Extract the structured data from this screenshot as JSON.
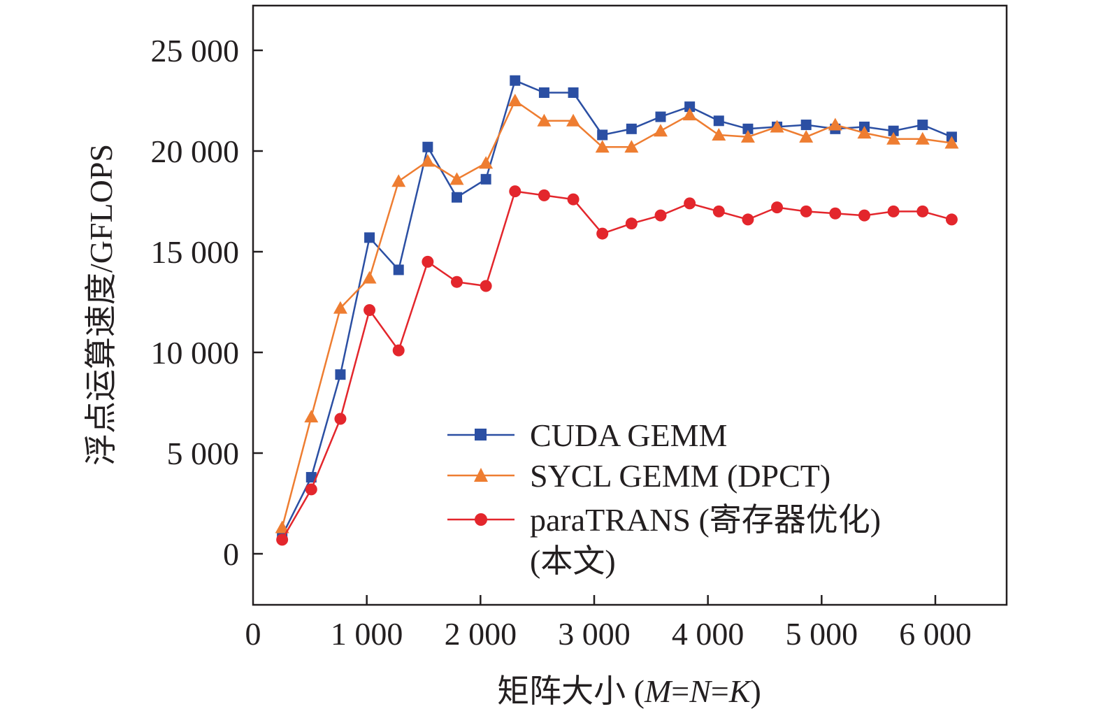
{
  "chart_data": {
    "type": "line",
    "title": "",
    "xlabel": "矩阵大小 (M=N=K)",
    "xlabel_parts": {
      "prefix": "矩阵大小 (",
      "m": "M",
      "eq1": "=",
      "n": "N",
      "eq2": "=",
      "k": "K",
      "suffix": ")"
    },
    "ylabel": "浮点运算速度/GFLOPS",
    "xlim": [
      0,
      6600
    ],
    "ylim": [
      -2500,
      27500
    ],
    "xticks": [
      0,
      1000,
      2000,
      3000,
      4000,
      5000,
      6000
    ],
    "xtick_labels": [
      "0",
      "1 000",
      "2 000",
      "3 000",
      "4 000",
      "5 000",
      "6 000"
    ],
    "yticks": [
      0,
      5000,
      10000,
      15000,
      20000,
      25000
    ],
    "ytick_labels": [
      "0",
      "5 000",
      "10 000",
      "15 000",
      "20 000",
      "25 000"
    ],
    "grid": false,
    "legend_position": "bottom-right",
    "x": [
      256,
      512,
      768,
      1024,
      1280,
      1536,
      1792,
      2048,
      2304,
      2560,
      2816,
      3072,
      3328,
      3584,
      3840,
      4096,
      4352,
      4608,
      4864,
      5120,
      5376,
      5632,
      5888,
      6144
    ],
    "series": [
      {
        "name": "CUDA GEMM",
        "color": "#2b4fa3",
        "marker": "square",
        "values": [
          900,
          3800,
          8900,
          15700,
          14100,
          20200,
          17700,
          18600,
          23500,
          22900,
          22900,
          20800,
          21100,
          21700,
          22200,
          21500,
          21100,
          21200,
          21300,
          21100,
          21200,
          21000,
          21300,
          20700
        ]
      },
      {
        "name": "SYCL GEMM (DPCT)",
        "color": "#ee7d31",
        "marker": "triangle",
        "values": [
          1300,
          6800,
          12200,
          13700,
          18500,
          19500,
          18600,
          19400,
          22500,
          21500,
          21500,
          20200,
          20200,
          21000,
          21800,
          20800,
          20700,
          21200,
          20700,
          21300,
          20900,
          20600,
          20600,
          20400
        ]
      },
      {
        "name": "paraTRANS (寄存器优化)",
        "name_line2": "(本文)",
        "color": "#e3262c",
        "marker": "circle",
        "values": [
          700,
          3200,
          6700,
          12100,
          10100,
          14500,
          13500,
          13300,
          18000,
          17800,
          17600,
          15900,
          16400,
          16800,
          17400,
          17000,
          16600,
          17200,
          17000,
          16900,
          16800,
          17000,
          17000,
          16600
        ]
      }
    ]
  }
}
